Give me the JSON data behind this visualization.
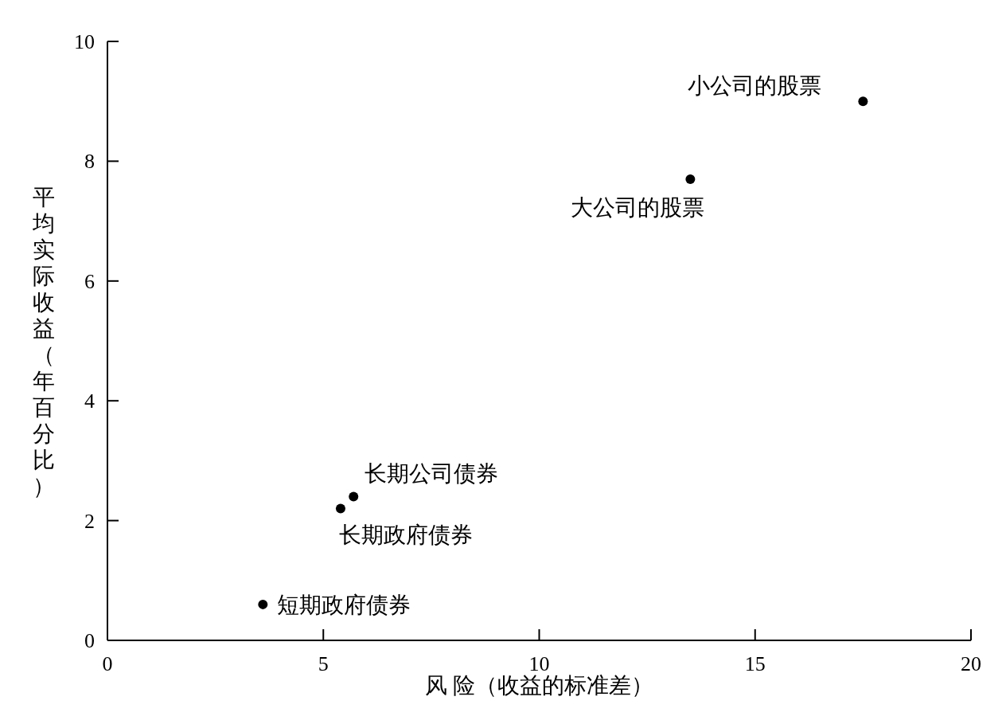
{
  "chart_data": {
    "type": "scatter",
    "xlabel": "风 险（收益的标准差）",
    "ylabel": "平均实际收益（年百分比）",
    "x": [
      3.6,
      5.4,
      5.7,
      13.5,
      17.5
    ],
    "series": [
      {
        "color": "#000000",
        "values": [
          0.6,
          2.2,
          2.4,
          7.7,
          9.0
        ]
      }
    ],
    "marker": "circle",
    "grid": false,
    "xlim": [
      0,
      20
    ],
    "ylim": [
      0,
      10
    ],
    "xticks": [
      0,
      5,
      10,
      15,
      20
    ],
    "yticks": [
      0,
      2,
      4,
      6,
      8,
      10
    ],
    "annotations": [
      {
        "text": "短期政府债券",
        "x": 3.6,
        "y": 0.6
      },
      {
        "text": "长期政府债券",
        "x": 5.4,
        "y": 2.2
      },
      {
        "text": "长期公司债券",
        "x": 5.7,
        "y": 2.4
      },
      {
        "text": "大公司的股票",
        "x": 13.5,
        "y": 7.7
      },
      {
        "text": "小公司的股票",
        "x": 17.5,
        "y": 9.0
      }
    ]
  }
}
